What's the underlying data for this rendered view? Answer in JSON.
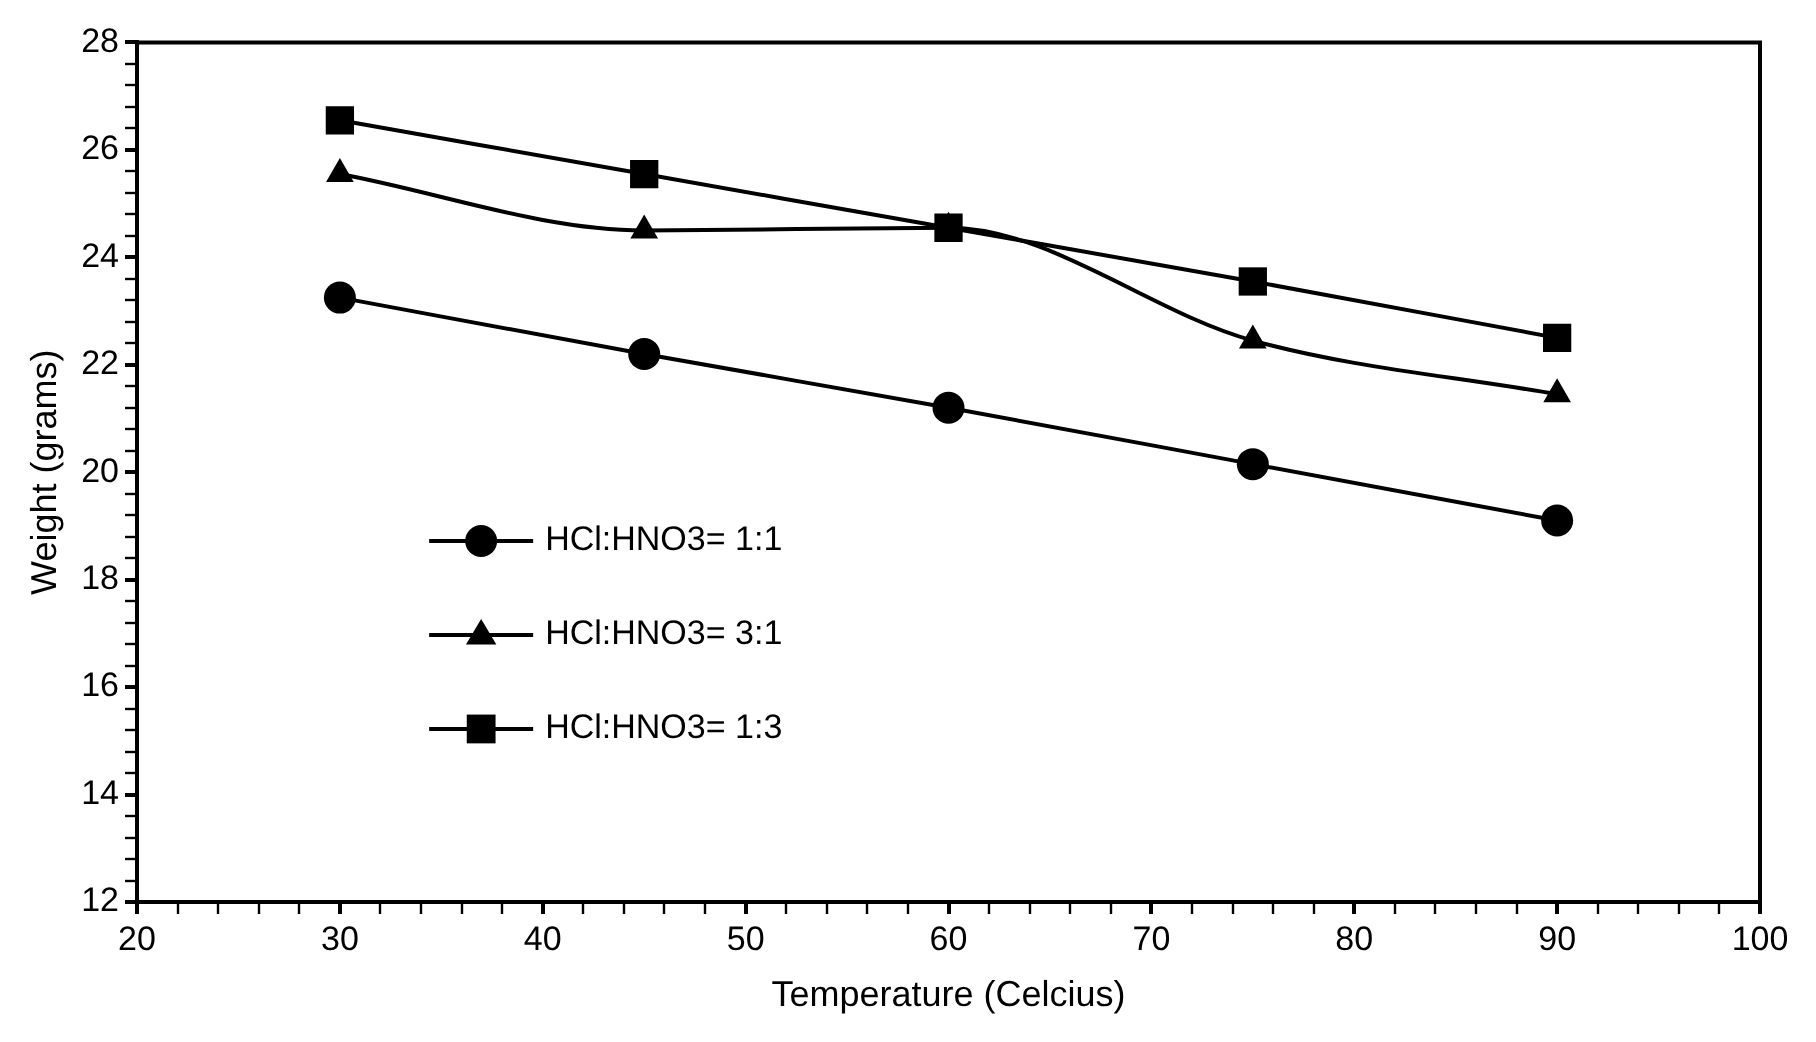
{
  "chart_data": {
    "type": "line",
    "xlabel": "Temperature (Celcius)",
    "ylabel": "Weight (grams)",
    "x": [
      30,
      45,
      60,
      75,
      90
    ],
    "series": [
      {
        "name": "HCl:HNO3= 1:1",
        "color": "#000000",
        "marker": "circle",
        "values": [
          23.25,
          22.2,
          21.2,
          20.15,
          19.1
        ]
      },
      {
        "name": "HCl:HNO3= 3:1",
        "color": "#000000",
        "marker": "triangle",
        "values": [
          25.55,
          24.5,
          24.55,
          22.45,
          21.45
        ]
      },
      {
        "name": "HCl:HNO3= 1:3",
        "color": "#000000",
        "marker": "square",
        "values": [
          26.55,
          25.55,
          24.55,
          23.55,
          22.5
        ]
      }
    ],
    "xlim": [
      20,
      100
    ],
    "xticks": [
      20,
      {
        "value": 22,
        "label": null
      },
      {
        "value": 24,
        "label": null
      },
      {
        "value": 26,
        "label": null
      },
      {
        "value": 28,
        "label": null
      },
      30,
      {
        "value": 32,
        "label": null
      },
      {
        "value": 34,
        "label": null
      },
      {
        "value": 36,
        "label": null
      },
      {
        "value": 38,
        "label": null
      },
      40,
      {
        "value": 42,
        "label": null
      },
      {
        "value": 44,
        "label": null
      },
      {
        "value": 46,
        "label": null
      },
      {
        "value": 48,
        "label": null
      },
      50,
      {
        "value": 52,
        "label": null
      },
      {
        "value": 54,
        "label": null
      },
      {
        "value": 56,
        "label": null
      },
      {
        "value": 58,
        "label": null
      },
      60,
      {
        "value": 62,
        "label": null
      },
      {
        "value": 64,
        "label": null
      },
      {
        "value": 66,
        "label": null
      },
      {
        "value": 68,
        "label": null
      },
      70,
      {
        "value": 72,
        "label": null
      },
      {
        "value": 74,
        "label": null
      },
      {
        "value": 76,
        "label": null
      },
      {
        "value": 78,
        "label": null
      },
      80,
      {
        "value": 82,
        "label": null
      },
      {
        "value": 84,
        "label": null
      },
      {
        "value": 86,
        "label": null
      },
      {
        "value": 88,
        "label": null
      },
      90,
      {
        "value": 92,
        "label": null
      },
      {
        "value": 94,
        "label": null
      },
      {
        "value": 96,
        "label": null
      },
      {
        "value": 98,
        "label": null
      },
      100
    ],
    "ylim": [
      12,
      28
    ],
    "yticks": [
      12,
      {
        "value": 12.4,
        "label": null
      },
      {
        "value": 12.8,
        "label": null
      },
      {
        "value": 13.2,
        "label": null
      },
      {
        "value": 13.6,
        "label": null
      },
      14,
      {
        "value": 14.4,
        "label": null
      },
      {
        "value": 14.8,
        "label": null
      },
      {
        "value": 15.2,
        "label": null
      },
      {
        "value": 15.6,
        "label": null
      },
      16,
      {
        "value": 16.4,
        "label": null
      },
      {
        "value": 16.8,
        "label": null
      },
      {
        "value": 17.2,
        "label": null
      },
      {
        "value": 17.6,
        "label": null
      },
      18,
      {
        "value": 18.4,
        "label": null
      },
      {
        "value": 18.8,
        "label": null
      },
      {
        "value": 19.2,
        "label": null
      },
      {
        "value": 19.6,
        "label": null
      },
      20,
      {
        "value": 20.4,
        "label": null
      },
      {
        "value": 20.8,
        "label": null
      },
      {
        "value": 21.2,
        "label": null
      },
      {
        "value": 21.6,
        "label": null
      },
      22,
      {
        "value": 22.4,
        "label": null
      },
      {
        "value": 22.8,
        "label": null
      },
      {
        "value": 23.2,
        "label": null
      },
      {
        "value": 23.6,
        "label": null
      },
      24,
      {
        "value": 24.4,
        "label": null
      },
      {
        "value": 24.8,
        "label": null
      },
      {
        "value": 25.2,
        "label": null
      },
      {
        "value": 25.6,
        "label": null
      },
      26,
      {
        "value": 26.4,
        "label": null
      },
      {
        "value": 26.8,
        "label": null
      },
      {
        "value": 27.2,
        "label": null
      },
      {
        "value": 27.6,
        "label": null
      },
      28
    ],
    "grid": false,
    "legend": "left",
    "line_style": "solid"
  }
}
